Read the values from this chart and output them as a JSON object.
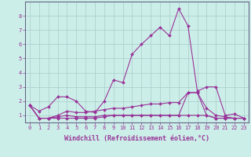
{
  "background_color": "#cceee8",
  "grid_color": "#aacccc",
  "line_color": "#993399",
  "marker": "D",
  "markersize": 2.0,
  "linewidth": 0.8,
  "xlabel": "Windchill (Refroidissement éolien,°C)",
  "xlabel_fontsize": 6.0,
  "xlim": [
    -0.5,
    23.5
  ],
  "ylim": [
    0.5,
    9.0
  ],
  "yticks": [
    1,
    2,
    3,
    4,
    5,
    6,
    7,
    8
  ],
  "xticks": [
    0,
    1,
    2,
    3,
    4,
    5,
    6,
    7,
    8,
    9,
    10,
    11,
    12,
    13,
    14,
    15,
    16,
    17,
    18,
    19,
    20,
    21,
    22,
    23
  ],
  "tick_fontsize": 5.0,
  "series": [
    [
      1.7,
      1.3,
      1.6,
      2.3,
      2.3,
      2.0,
      1.3,
      1.2,
      2.0,
      3.5,
      3.3,
      5.3,
      6.0,
      6.6,
      7.2,
      6.6,
      8.5,
      7.3,
      2.7,
      3.0,
      3.0,
      1.0,
      1.1,
      0.8
    ],
    [
      1.7,
      0.8,
      0.8,
      0.8,
      0.8,
      0.8,
      0.8,
      0.8,
      0.9,
      1.0,
      1.0,
      1.0,
      1.0,
      1.0,
      1.0,
      1.0,
      1.0,
      2.6,
      2.6,
      1.0,
      0.8,
      0.8,
      0.8,
      0.8
    ],
    [
      1.7,
      0.8,
      0.8,
      1.0,
      1.3,
      1.2,
      1.2,
      1.3,
      1.4,
      1.5,
      1.5,
      1.6,
      1.7,
      1.8,
      1.8,
      1.9,
      1.9,
      2.6,
      2.6,
      1.5,
      1.0,
      0.9,
      0.8,
      0.8
    ],
    [
      1.7,
      0.8,
      0.8,
      0.9,
      1.0,
      0.9,
      0.9,
      0.9,
      1.0,
      1.0,
      1.0,
      1.0,
      1.0,
      1.0,
      1.0,
      1.0,
      1.0,
      1.0,
      1.0,
      1.0,
      0.8,
      0.8,
      0.8,
      0.8
    ]
  ]
}
